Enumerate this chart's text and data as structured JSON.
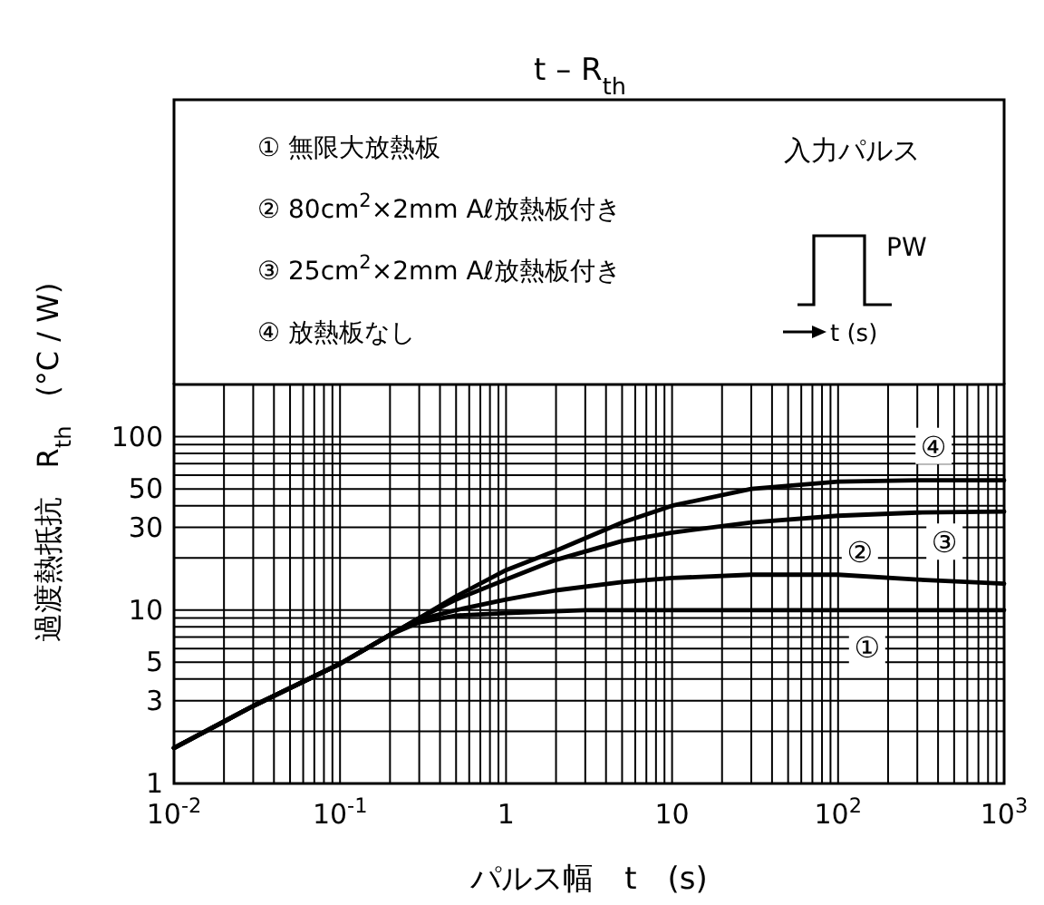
{
  "chart_data": {
    "type": "line",
    "title": "t – R$_{th}$",
    "xlabel": "パルス幅　t　(s)",
    "ylabel": "過渡熱抵抗　R$_{th}$　(°C / W)",
    "log": "xy",
    "grid": true,
    "marker": "none",
    "line_style": "solid",
    "xlim": [
      0.01,
      1000
    ],
    "ylim": [
      1,
      200
    ],
    "xticks": [
      {
        "value": 0.01,
        "label": "10$^{-2}$"
      },
      {
        "value": 0.1,
        "label": "10$^{-1}$"
      },
      1,
      10,
      {
        "value": 100,
        "label": "10$^{2}$"
      },
      {
        "value": 1000,
        "label": "10$^{3}$"
      }
    ],
    "yticks": [
      1,
      3,
      5,
      10,
      30,
      50,
      100
    ],
    "series": [
      {
        "name": "①",
        "color": "#000000",
        "x": [
          0.01,
          0.03,
          0.1,
          0.2,
          0.3,
          0.5,
          1,
          3,
          10,
          100,
          1000
        ],
        "values": [
          1.6,
          2.8,
          4.9,
          7.2,
          8.5,
          9.3,
          9.6,
          10,
          10,
          10,
          10
        ]
      },
      {
        "name": "②",
        "color": "#000000",
        "x": [
          0.01,
          0.03,
          0.1,
          0.2,
          0.3,
          0.5,
          1,
          2,
          5,
          10,
          30,
          100,
          300,
          1000
        ],
        "values": [
          1.6,
          2.8,
          4.9,
          7.2,
          8.8,
          10,
          11.5,
          13,
          14.5,
          15.3,
          16,
          16,
          15,
          14.2
        ]
      },
      {
        "name": "③",
        "color": "#000000",
        "x": [
          0.01,
          0.03,
          0.1,
          0.2,
          0.3,
          0.5,
          1,
          2,
          5,
          10,
          30,
          100,
          300,
          1000
        ],
        "values": [
          1.6,
          2.8,
          4.9,
          7.2,
          9,
          11.5,
          15,
          19.5,
          25,
          28,
          32,
          35,
          36.5,
          37
        ]
      },
      {
        "name": "④",
        "color": "#000000",
        "x": [
          0.01,
          0.03,
          0.1,
          0.2,
          0.3,
          0.5,
          1,
          2,
          5,
          10,
          30,
          100,
          300,
          1000
        ],
        "values": [
          1.6,
          2.8,
          4.9,
          7.2,
          9,
          12,
          17,
          22,
          32,
          40,
          50,
          55,
          56,
          56
        ]
      }
    ],
    "annotations": [
      "①  無限大放熱板",
      "②  80cm$^{2}$×2mm Aℓ放熱板付き",
      "③  25cm$^{2}$×2mm Aℓ放熱板付き",
      "④  放熱板なし",
      "入力パルス",
      "PW",
      "t (s)"
    ]
  }
}
